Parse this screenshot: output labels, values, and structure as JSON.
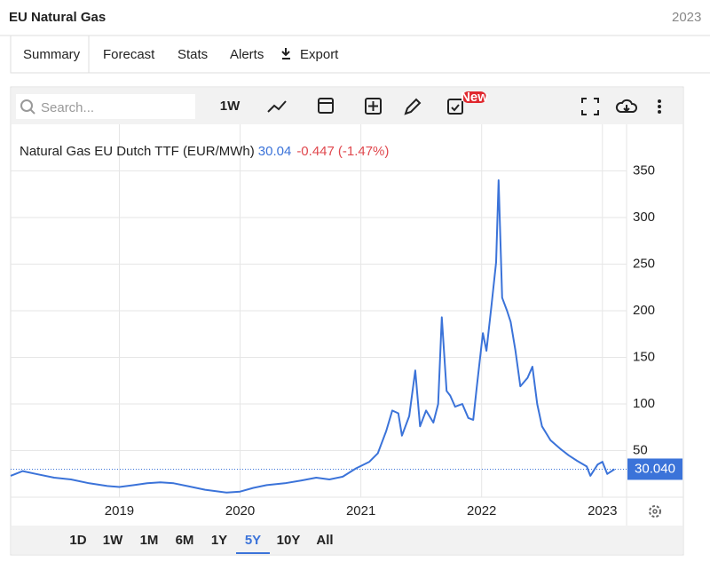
{
  "header": {
    "title": "EU Natural Gas",
    "date": "2023"
  },
  "tabs": [
    "Summary",
    "Forecast",
    "Stats",
    "Alerts",
    "Export"
  ],
  "toolbar": {
    "search": "Search...",
    "interval": "1W",
    "badge": "New"
  },
  "quote": {
    "name": "Natural Gas EU Dutch TTF (EUR/MWh)",
    "price": "30.04",
    "change": "-0.447",
    "percent": "(-1.47%)",
    "last_label": "30.040"
  },
  "ranges": [
    "1D",
    "1W",
    "1M",
    "6M",
    "1Y",
    "5Y",
    "10Y",
    "All"
  ],
  "active_range": "5Y",
  "chart_data": {
    "type": "line",
    "series": [
      {
        "name": "Natural Gas EU Dutch TTF",
        "color": "#3b73d9",
        "x": [
          2018.1,
          2018.2,
          2018.31,
          2018.46,
          2018.6,
          2018.75,
          2018.9,
          2019.0,
          2019.12,
          2019.23,
          2019.34,
          2019.45,
          2019.56,
          2019.71,
          2019.89,
          2020.0,
          2020.11,
          2020.22,
          2020.37,
          2020.51,
          2020.63,
          2020.74,
          2020.85,
          2020.96,
          2021.07,
          2021.14,
          2021.21,
          2021.26,
          2021.31,
          2021.34,
          2021.4,
          2021.45,
          2021.49,
          2021.54,
          2021.6,
          2021.64,
          2021.67,
          2021.71,
          2021.74,
          2021.78,
          2021.84,
          2021.89,
          2021.93,
          2021.96,
          2022.01,
          2022.04,
          2022.08,
          2022.12,
          2022.14,
          2022.17,
          2022.21,
          2022.24,
          2022.28,
          2022.32,
          2022.38,
          2022.42,
          2022.46,
          2022.5,
          2022.57,
          2022.65,
          2022.72,
          2022.79,
          2022.87,
          2022.9,
          2022.96,
          2023.0,
          2023.04,
          2023.1
        ],
        "values": [
          23,
          28,
          25,
          21,
          19,
          15,
          12,
          11,
          13,
          15,
          16,
          15,
          12,
          8,
          5,
          6,
          10,
          13,
          15,
          18,
          21,
          19,
          22,
          31,
          38,
          47,
          71,
          93,
          90,
          66,
          87,
          136,
          76,
          93,
          80,
          100,
          193,
          114,
          109,
          97,
          100,
          85,
          83,
          119,
          176,
          157,
          204,
          252,
          340,
          214,
          200,
          188,
          157,
          119,
          128,
          140,
          100,
          76,
          61,
          52,
          45,
          39,
          33,
          23,
          35,
          38,
          25,
          30.04
        ]
      }
    ],
    "xlim": [
      2018.1,
      2023.2
    ],
    "xticks": [
      2019,
      2020,
      2021,
      2022,
      2023
    ],
    "ylim": [
      0,
      400
    ],
    "yticks": [
      50,
      100,
      150,
      200,
      250,
      300,
      350
    ],
    "grid": true
  }
}
